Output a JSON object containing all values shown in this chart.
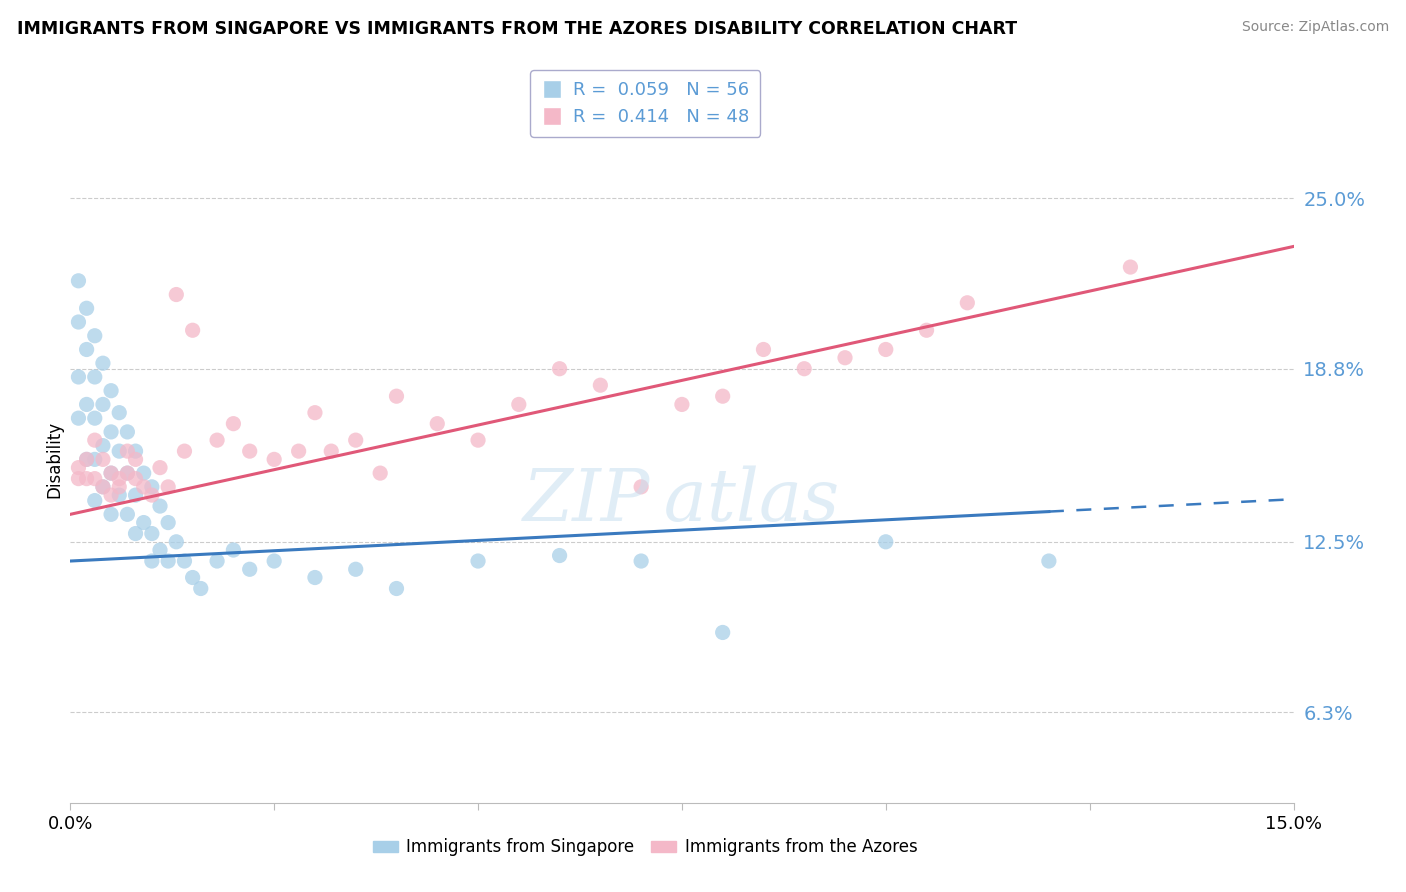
{
  "title": "IMMIGRANTS FROM SINGAPORE VS IMMIGRANTS FROM THE AZORES DISABILITY CORRELATION CHART",
  "source": "Source: ZipAtlas.com",
  "ylabel": "Disability",
  "xlim": [
    0.0,
    0.15
  ],
  "ylim": [
    0.03,
    0.28
  ],
  "yticks": [
    0.063,
    0.125,
    0.188,
    0.25
  ],
  "ytick_labels": [
    "6.3%",
    "12.5%",
    "18.8%",
    "25.0%"
  ],
  "xtick_positions": [
    0.0,
    0.025,
    0.05,
    0.075,
    0.1,
    0.125,
    0.15
  ],
  "color_singapore": "#a8cfe8",
  "color_azores": "#f4b8c8",
  "color_singapore_line": "#3a7abf",
  "color_azores_line": "#e05878",
  "R_singapore": 0.059,
  "N_singapore": 56,
  "R_azores": 0.414,
  "N_azores": 48,
  "singapore_intercept": 0.118,
  "singapore_slope": 0.15,
  "azores_intercept": 0.135,
  "azores_slope": 0.65,
  "singapore_x": [
    0.001,
    0.001,
    0.001,
    0.001,
    0.002,
    0.002,
    0.002,
    0.002,
    0.003,
    0.003,
    0.003,
    0.003,
    0.003,
    0.004,
    0.004,
    0.004,
    0.004,
    0.005,
    0.005,
    0.005,
    0.005,
    0.006,
    0.006,
    0.006,
    0.007,
    0.007,
    0.007,
    0.008,
    0.008,
    0.008,
    0.009,
    0.009,
    0.01,
    0.01,
    0.01,
    0.011,
    0.011,
    0.012,
    0.012,
    0.013,
    0.014,
    0.015,
    0.016,
    0.018,
    0.02,
    0.022,
    0.025,
    0.03,
    0.035,
    0.04,
    0.05,
    0.06,
    0.07,
    0.08,
    0.1,
    0.12
  ],
  "singapore_y": [
    0.22,
    0.205,
    0.185,
    0.17,
    0.21,
    0.195,
    0.175,
    0.155,
    0.2,
    0.185,
    0.17,
    0.155,
    0.14,
    0.19,
    0.175,
    0.16,
    0.145,
    0.18,
    0.165,
    0.15,
    0.135,
    0.172,
    0.158,
    0.142,
    0.165,
    0.15,
    0.135,
    0.158,
    0.142,
    0.128,
    0.15,
    0.132,
    0.145,
    0.128,
    0.118,
    0.138,
    0.122,
    0.132,
    0.118,
    0.125,
    0.118,
    0.112,
    0.108,
    0.118,
    0.122,
    0.115,
    0.118,
    0.112,
    0.115,
    0.108,
    0.118,
    0.12,
    0.118,
    0.092,
    0.125,
    0.118
  ],
  "azores_x": [
    0.001,
    0.001,
    0.002,
    0.002,
    0.003,
    0.003,
    0.004,
    0.004,
    0.005,
    0.005,
    0.006,
    0.006,
    0.007,
    0.007,
    0.008,
    0.008,
    0.009,
    0.01,
    0.011,
    0.012,
    0.013,
    0.014,
    0.015,
    0.018,
    0.02,
    0.022,
    0.025,
    0.028,
    0.03,
    0.032,
    0.035,
    0.038,
    0.04,
    0.045,
    0.05,
    0.055,
    0.06,
    0.065,
    0.07,
    0.075,
    0.08,
    0.085,
    0.09,
    0.095,
    0.1,
    0.105,
    0.11,
    0.13
  ],
  "azores_y": [
    0.152,
    0.148,
    0.155,
    0.148,
    0.162,
    0.148,
    0.155,
    0.145,
    0.15,
    0.142,
    0.145,
    0.148,
    0.158,
    0.15,
    0.148,
    0.155,
    0.145,
    0.142,
    0.152,
    0.145,
    0.215,
    0.158,
    0.202,
    0.162,
    0.168,
    0.158,
    0.155,
    0.158,
    0.172,
    0.158,
    0.162,
    0.15,
    0.178,
    0.168,
    0.162,
    0.175,
    0.188,
    0.182,
    0.145,
    0.175,
    0.178,
    0.195,
    0.188,
    0.192,
    0.195,
    0.202,
    0.212,
    0.225
  ]
}
